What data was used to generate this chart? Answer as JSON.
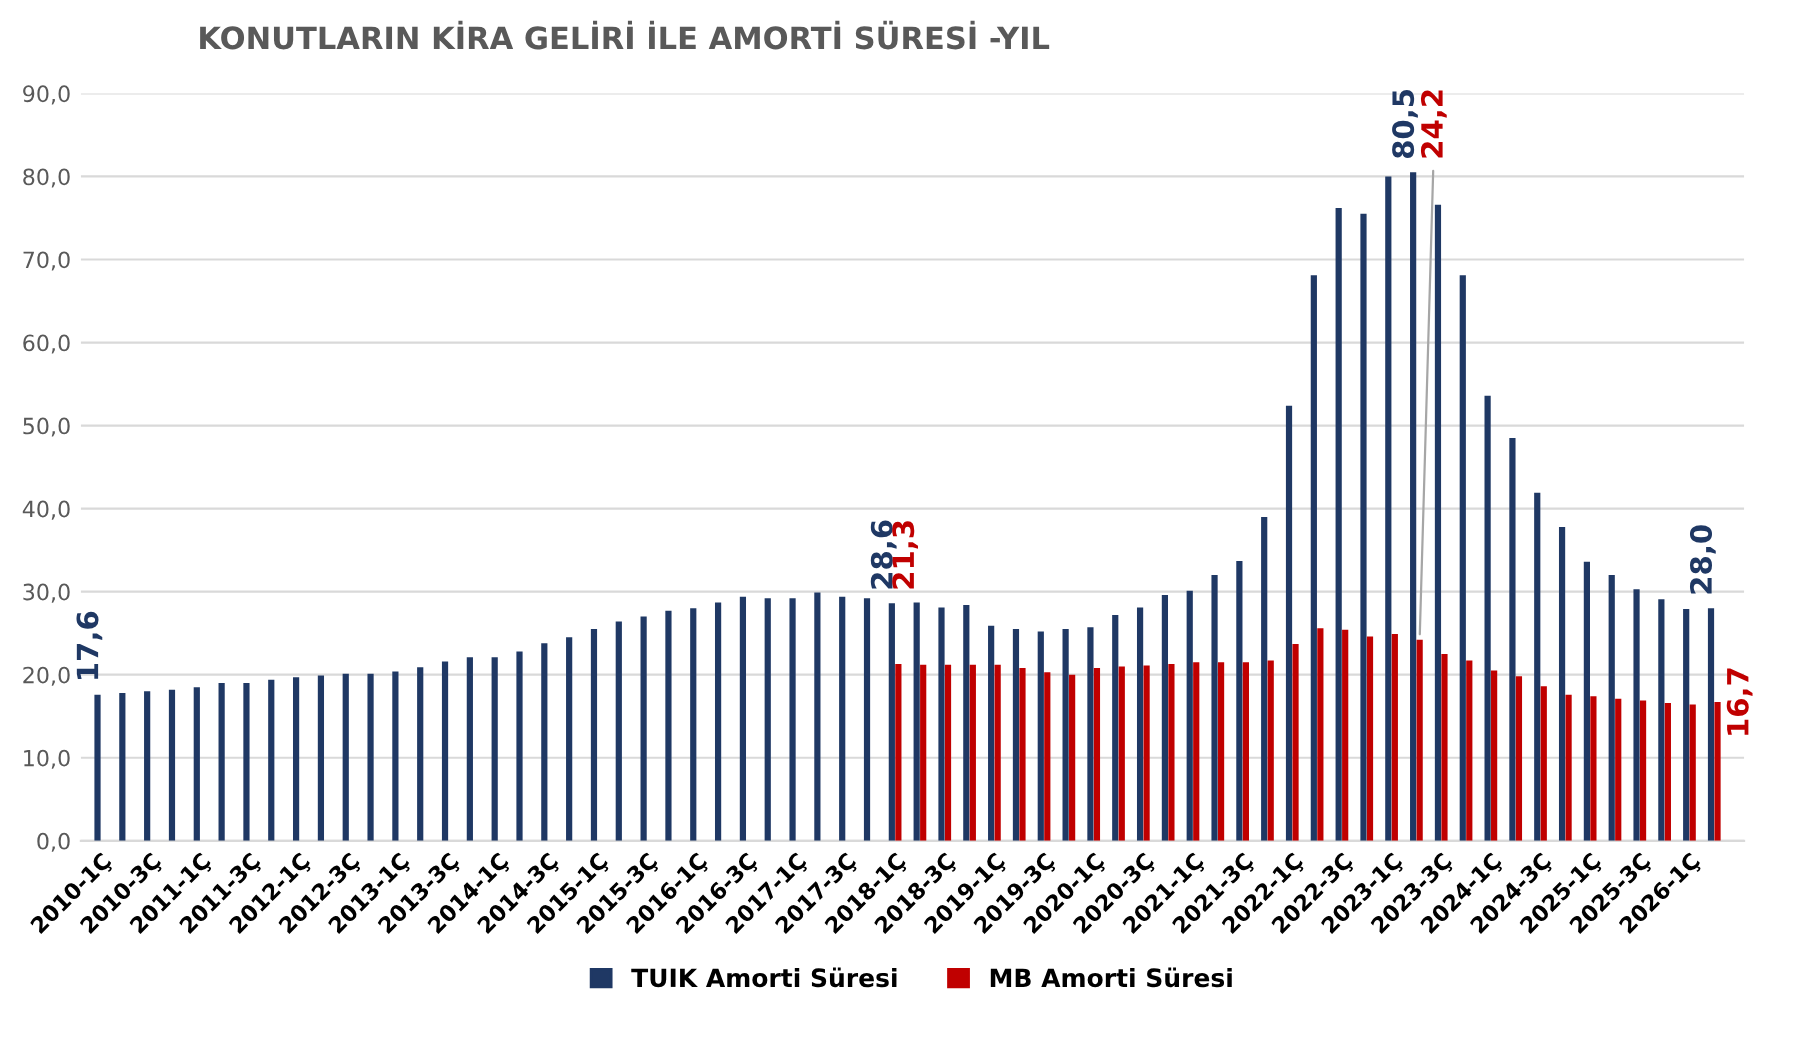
{
  "chart_data": {
    "type": "bar",
    "title": "KONUTLARIN KİRA GELİRİ İLE AMORTİ SÜRESİ -YIL",
    "categories": [
      "2010-1Ç",
      null,
      "2010-3Ç",
      null,
      "2011-1Ç",
      null,
      "2011-3Ç",
      null,
      "2012-1Ç",
      null,
      "2012-3Ç",
      null,
      "2013-1Ç",
      null,
      "2013-3Ç",
      null,
      "2014-1Ç",
      null,
      "2014-3Ç",
      null,
      "2015-1Ç",
      null,
      "2015-3Ç",
      null,
      "2016-1Ç",
      null,
      "2016-3Ç",
      null,
      "2017-1Ç",
      null,
      "2017-3Ç",
      null,
      "2018-1Ç",
      null,
      "2018-3Ç",
      null,
      "2019-1Ç",
      null,
      "2019-3Ç",
      null,
      "2020-1Ç",
      null,
      "2020-3Ç",
      null,
      "2021-1Ç",
      null,
      "2021-3Ç",
      null,
      "2022-1Ç",
      null,
      "2022-3Ç",
      null,
      "2023-1Ç",
      null,
      "2023-3Ç",
      null,
      "2024-1Ç",
      null,
      "2024-3Ç",
      null,
      "2025-1Ç",
      null,
      "2025-3Ç",
      null,
      "2026-1Ç",
      null
    ],
    "series": [
      {
        "name": "TUIK Amorti Süresi",
        "color": "#1f3864",
        "values": [
          17.6,
          17.8,
          18.0,
          18.2,
          18.5,
          19.0,
          19.0,
          19.4,
          19.7,
          19.9,
          20.1,
          20.1,
          20.4,
          20.9,
          21.6,
          22.1,
          22.1,
          22.8,
          23.8,
          24.5,
          25.5,
          26.4,
          27.0,
          27.7,
          28.0,
          28.7,
          29.4,
          29.2,
          29.2,
          29.9,
          29.4,
          29.2,
          28.6,
          28.7,
          28.1,
          28.4,
          25.9,
          25.5,
          25.2,
          25.5,
          25.7,
          27.2,
          28.1,
          29.6,
          30.1,
          32.0,
          33.7,
          39.0,
          52.4,
          68.1,
          76.2,
          75.5,
          80.0,
          80.5,
          76.6,
          68.1,
          53.6,
          48.5,
          41.9,
          37.8,
          33.6,
          32.0,
          30.3,
          29.1,
          27.9,
          28.0
        ],
        "value_labels": [
          "17,6",
          null,
          null,
          null,
          null,
          null,
          null,
          null,
          null,
          null,
          null,
          null,
          null,
          null,
          null,
          null,
          null,
          null,
          null,
          null,
          null,
          null,
          null,
          null,
          null,
          null,
          null,
          null,
          null,
          null,
          null,
          null,
          "28,6",
          null,
          null,
          null,
          null,
          null,
          null,
          null,
          null,
          null,
          null,
          null,
          null,
          null,
          null,
          null,
          null,
          null,
          null,
          null,
          null,
          "80,5",
          null,
          null,
          null,
          null,
          null,
          null,
          null,
          null,
          null,
          null,
          null,
          "28,0"
        ]
      },
      {
        "name": "MB Amorti Süresi",
        "color": "#c00000",
        "values": [
          null,
          null,
          null,
          null,
          null,
          null,
          null,
          null,
          null,
          null,
          null,
          null,
          null,
          null,
          null,
          null,
          null,
          null,
          null,
          null,
          null,
          null,
          null,
          null,
          null,
          null,
          null,
          null,
          null,
          null,
          null,
          null,
          21.3,
          21.2,
          21.2,
          21.2,
          21.2,
          20.8,
          20.3,
          20.0,
          20.8,
          21.0,
          21.1,
          21.3,
          21.5,
          21.5,
          21.5,
          21.7,
          23.7,
          25.6,
          25.4,
          24.6,
          24.9,
          24.2,
          22.5,
          21.7,
          20.5,
          19.8,
          18.6,
          17.6,
          17.4,
          17.1,
          16.9,
          16.6,
          16.4,
          16.7
        ],
        "value_labels": [
          null,
          null,
          null,
          null,
          null,
          null,
          null,
          null,
          null,
          null,
          null,
          null,
          null,
          null,
          null,
          null,
          null,
          null,
          null,
          null,
          null,
          null,
          null,
          null,
          null,
          null,
          null,
          null,
          null,
          null,
          null,
          null,
          "21,3",
          null,
          null,
          null,
          null,
          null,
          null,
          null,
          null,
          null,
          null,
          null,
          null,
          null,
          null,
          null,
          null,
          null,
          null,
          null,
          null,
          "24,2",
          null,
          null,
          null,
          null,
          null,
          null,
          null,
          null,
          null,
          null,
          null,
          "16,7"
        ]
      }
    ],
    "ylim": [
      0,
      90
    ],
    "yticks": [
      {
        "value": 0,
        "label": "0,0"
      },
      {
        "value": 10,
        "label": "10,0"
      },
      {
        "value": 20,
        "label": "20,0"
      },
      {
        "value": 30,
        "label": "30,0"
      },
      {
        "value": 40,
        "label": "40,0"
      },
      {
        "value": 50,
        "label": "50,0"
      },
      {
        "value": 60,
        "label": "60,0"
      },
      {
        "value": 70,
        "label": "70,0"
      },
      {
        "value": 80,
        "label": "80,0"
      },
      {
        "value": 90,
        "label": "90,0"
      }
    ],
    "grid": "y",
    "legend": "bottom"
  }
}
